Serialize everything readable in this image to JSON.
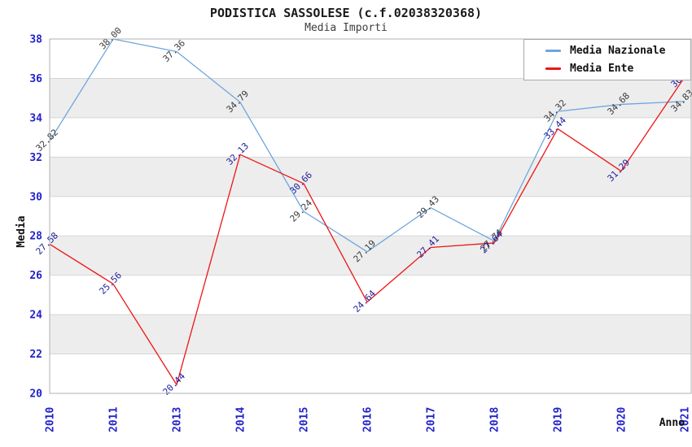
{
  "chart_data": {
    "type": "line",
    "title": "PODISTICA SASSOLESE (c.f.02038320368)",
    "subtitle": "Media Importi",
    "xlabel": "Anno",
    "ylabel": "Media",
    "categories": [
      "2010",
      "2011",
      "2013",
      "2014",
      "2015",
      "2016",
      "2017",
      "2018",
      "2019",
      "2020",
      "2021"
    ],
    "series": [
      {
        "name": "Media Nazionale",
        "color": "#6da6dd",
        "label_color": "#3a3a3a",
        "values": [
          32.82,
          38.0,
          37.36,
          34.79,
          29.24,
          27.19,
          29.43,
          27.74,
          34.32,
          34.68,
          34.83
        ]
      },
      {
        "name": "Media Ente",
        "color": "#ee1515",
        "label_color": "#1c1c9e",
        "values": [
          27.58,
          25.56,
          20.44,
          32.13,
          30.66,
          24.64,
          27.41,
          27.64,
          33.44,
          31.29,
          36.07
        ]
      }
    ],
    "ylim": [
      20,
      38
    ],
    "ytick_step": 2,
    "yticks": [
      20,
      22,
      24,
      26,
      28,
      30,
      32,
      34,
      36,
      38
    ],
    "tick_color": "#2222cc",
    "band_color": "#ededed",
    "grid_color": "#d6d6d6",
    "border_color": "#b0b0b0",
    "grid": "horizontal-bands",
    "legend_position": "top-right",
    "label_rotation_deg": -45,
    "value_decimals": 2
  }
}
